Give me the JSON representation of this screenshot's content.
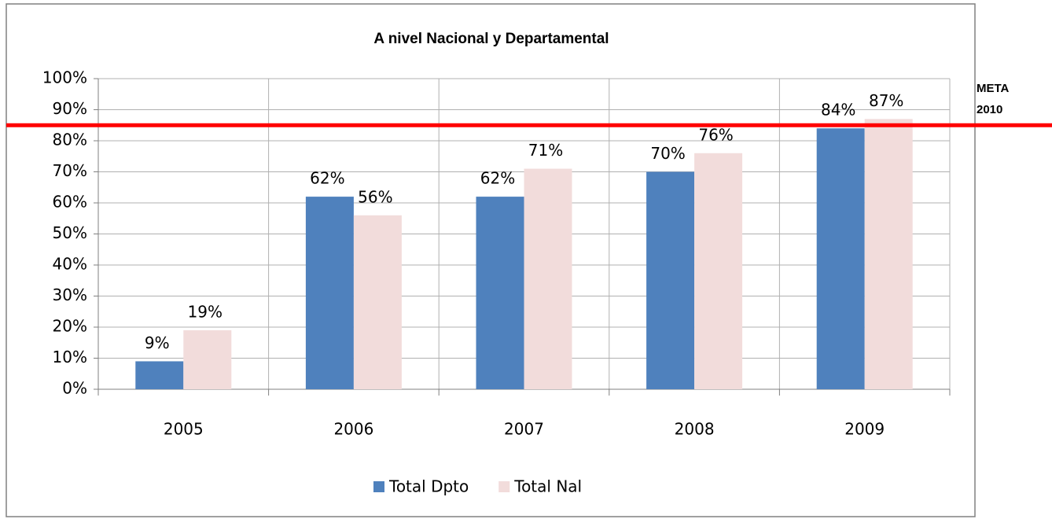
{
  "chart_data": {
    "type": "bar",
    "title": "A nivel Nacional y Departamental",
    "categories": [
      "2005",
      "2006",
      "2007",
      "2008",
      "2009"
    ],
    "series": [
      {
        "name": "Total Dpto",
        "color": "#4f81bd",
        "values": [
          9,
          62,
          62,
          70,
          84
        ],
        "value_labels": [
          "9%",
          "62%",
          "62%",
          "70%",
          "84%"
        ]
      },
      {
        "name": "Total Nal",
        "color": "#f2dcdb",
        "values": [
          19,
          56,
          71,
          76,
          87
        ],
        "value_labels": [
          "19%",
          "56%",
          "71%",
          "76%",
          "87%"
        ]
      }
    ],
    "ylim": [
      0,
      100
    ],
    "yticks": [
      {
        "value": 0,
        "label": "0%"
      },
      {
        "value": 10,
        "label": "10%"
      },
      {
        "value": 20,
        "label": "20%"
      },
      {
        "value": 30,
        "label": "30%"
      },
      {
        "value": 40,
        "label": "40%"
      },
      {
        "value": 50,
        "label": "50%"
      },
      {
        "value": 60,
        "label": "60%"
      },
      {
        "value": 70,
        "label": "70%"
      },
      {
        "value": 80,
        "label": "80%"
      },
      {
        "value": 90,
        "label": "90%"
      },
      {
        "value": 100,
        "label": "100%"
      }
    ],
    "grid": true,
    "legend": "bottom",
    "reference_line": {
      "value": 85,
      "color": "#ff0000",
      "label": [
        "META",
        "2010"
      ]
    }
  }
}
